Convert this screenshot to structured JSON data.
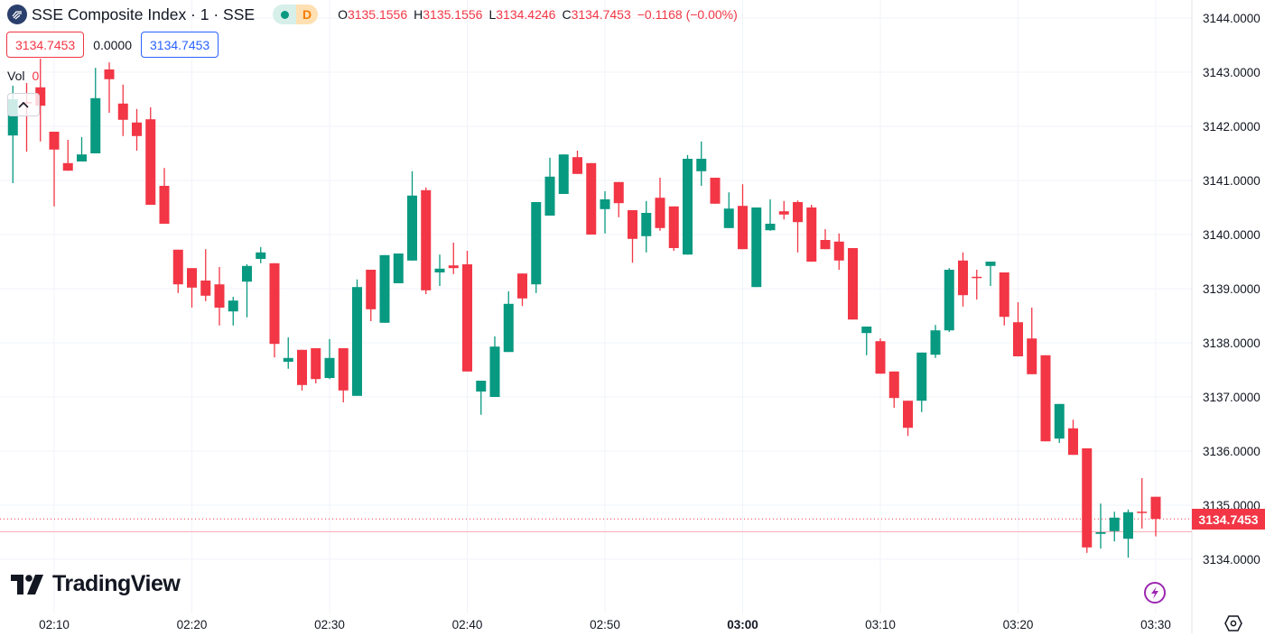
{
  "header": {
    "symbol_title": "SSE Composite Index · 1 · SSE",
    "market_status_letter": "D",
    "ohlc": {
      "o_label": "O",
      "o": "3135.1556",
      "h_label": "H",
      "h": "3135.1556",
      "l_label": "L",
      "l": "3134.4246",
      "c_label": "C",
      "c": "3134.7453",
      "change": "−0.1168 (−0.00%)"
    },
    "bid": "3134.7453",
    "spread": "0.0000",
    "ask": "3134.7453"
  },
  "volume": {
    "label": "Vol",
    "value": "0"
  },
  "logo_text": "TradingView",
  "last_price_tag": "3134.7453",
  "colors": {
    "up": "#089981",
    "down": "#f23645",
    "grid": "#f0f3fa",
    "accent": "#2962ff",
    "bolt": "#9c27b0"
  },
  "chart_data": {
    "type": "candlestick",
    "title": "SSE Composite Index · 1 · SSE",
    "start_time": "02:07",
    "interval_minutes": 1,
    "ylim": [
      3133.5,
      3144.33
    ],
    "y_ticks": [
      "3134.0000",
      "3135.0000",
      "3136.0000",
      "3137.0000",
      "3138.0000",
      "3139.0000",
      "3140.0000",
      "3141.0000",
      "3142.0000",
      "3143.0000",
      "3144.0000"
    ],
    "x_ticks": [
      {
        "t": "02:10",
        "bold": false
      },
      {
        "t": "02:20",
        "bold": false
      },
      {
        "t": "02:30",
        "bold": false
      },
      {
        "t": "02:40",
        "bold": false
      },
      {
        "t": "02:50",
        "bold": false
      },
      {
        "t": "03:00",
        "bold": true
      },
      {
        "t": "03:10",
        "bold": false
      },
      {
        "t": "03:20",
        "bold": false
      },
      {
        "t": "03:30",
        "bold": false
      }
    ],
    "prev_close_line": 3134.51,
    "last_price": 3134.7453,
    "ohlc_columns": [
      "open",
      "high",
      "low",
      "close"
    ],
    "candles": [
      [
        3141.83,
        3142.75,
        3140.95,
        3142.5
      ],
      [
        3142.45,
        3142.8,
        3141.53,
        3142.42
      ],
      [
        3142.72,
        3143.25,
        3141.72,
        3142.38
      ],
      [
        3141.9,
        3141.9,
        3140.52,
        3141.57
      ],
      [
        3141.32,
        3141.75,
        3141.18,
        3141.18
      ],
      [
        3141.35,
        3141.8,
        3141.35,
        3141.48
      ],
      [
        3141.5,
        3143.08,
        3141.5,
        3142.52
      ],
      [
        3143.05,
        3143.18,
        3142.25,
        3142.87
      ],
      [
        3142.42,
        3142.77,
        3141.82,
        3142.12
      ],
      [
        3142.07,
        3142.32,
        3141.55,
        3141.82
      ],
      [
        3142.13,
        3142.35,
        3140.55,
        3140.55
      ],
      [
        3140.9,
        3141.23,
        3140.2,
        3140.2
      ],
      [
        3139.72,
        3139.72,
        3138.92,
        3139.08
      ],
      [
        3139.38,
        3139.38,
        3138.65,
        3139.02
      ],
      [
        3139.15,
        3139.73,
        3138.77,
        3138.87
      ],
      [
        3139.08,
        3139.4,
        3138.32,
        3138.65
      ],
      [
        3138.58,
        3138.85,
        3138.32,
        3138.78
      ],
      [
        3139.13,
        3139.45,
        3138.47,
        3139.42
      ],
      [
        3139.55,
        3139.77,
        3139.47,
        3139.67
      ],
      [
        3139.47,
        3139.47,
        3137.73,
        3137.98
      ],
      [
        3137.65,
        3138.1,
        3137.52,
        3137.72
      ],
      [
        3137.87,
        3137.87,
        3137.12,
        3137.22
      ],
      [
        3137.9,
        3137.9,
        3137.25,
        3137.33
      ],
      [
        3137.35,
        3138.07,
        3137.33,
        3137.72
      ],
      [
        3137.9,
        3137.9,
        3136.9,
        3137.12
      ],
      [
        3137.02,
        3139.17,
        3137.02,
        3139.03
      ],
      [
        3139.35,
        3139.35,
        3138.4,
        3138.62
      ],
      [
        3138.37,
        3139.62,
        3138.37,
        3139.62
      ],
      [
        3139.1,
        3139.65,
        3139.1,
        3139.65
      ],
      [
        3139.52,
        3141.17,
        3139.52,
        3140.72
      ],
      [
        3140.82,
        3140.87,
        3138.9,
        3138.97
      ],
      [
        3139.3,
        3139.63,
        3139.05,
        3139.37
      ],
      [
        3139.43,
        3139.85,
        3139.27,
        3139.38
      ],
      [
        3139.45,
        3139.7,
        3137.47,
        3137.47
      ],
      [
        3137.1,
        3137.3,
        3136.67,
        3137.3
      ],
      [
        3137.0,
        3138.12,
        3137.0,
        3137.93
      ],
      [
        3137.83,
        3138.95,
        3137.83,
        3138.72
      ],
      [
        3139.28,
        3139.28,
        3138.68,
        3138.82
      ],
      [
        3139.08,
        3140.6,
        3138.92,
        3140.6
      ],
      [
        3140.35,
        3141.42,
        3140.35,
        3141.07
      ],
      [
        3140.75,
        3141.48,
        3140.75,
        3141.48
      ],
      [
        3141.43,
        3141.55,
        3141.12,
        3141.12
      ],
      [
        3141.32,
        3141.32,
        3140.0,
        3140.0
      ],
      [
        3140.47,
        3140.8,
        3140.02,
        3140.65
      ],
      [
        3140.97,
        3140.97,
        3140.32,
        3140.58
      ],
      [
        3140.45,
        3140.45,
        3139.48,
        3139.92
      ],
      [
        3139.97,
        3140.62,
        3139.67,
        3140.4
      ],
      [
        3140.68,
        3141.05,
        3140.07,
        3140.12
      ],
      [
        3140.52,
        3140.52,
        3139.7,
        3139.75
      ],
      [
        3139.63,
        3141.47,
        3139.63,
        3141.4
      ],
      [
        3141.17,
        3141.72,
        3140.9,
        3141.4
      ],
      [
        3141.05,
        3141.05,
        3140.57,
        3140.57
      ],
      [
        3140.12,
        3140.78,
        3140.12,
        3140.48
      ],
      [
        3140.53,
        3140.93,
        3139.73,
        3139.73
      ],
      [
        3139.03,
        3140.5,
        3139.03,
        3140.5
      ],
      [
        3140.08,
        3140.65,
        3140.07,
        3140.2
      ],
      [
        3140.43,
        3140.62,
        3140.28,
        3140.37
      ],
      [
        3140.6,
        3140.63,
        3139.67,
        3140.23
      ],
      [
        3140.5,
        3140.55,
        3139.5,
        3139.5
      ],
      [
        3139.9,
        3140.1,
        3139.73,
        3139.73
      ],
      [
        3139.87,
        3140.02,
        3139.35,
        3139.52
      ],
      [
        3139.75,
        3139.75,
        3138.43,
        3138.43
      ],
      [
        3138.18,
        3138.3,
        3137.77,
        3138.3
      ],
      [
        3138.03,
        3138.08,
        3137.43,
        3137.43
      ],
      [
        3137.47,
        3137.47,
        3136.8,
        3136.98
      ],
      [
        3136.93,
        3136.93,
        3136.28,
        3136.43
      ],
      [
        3136.93,
        3137.82,
        3136.72,
        3137.82
      ],
      [
        3137.78,
        3138.33,
        3137.72,
        3138.23
      ],
      [
        3138.23,
        3139.38,
        3138.2,
        3139.35
      ],
      [
        3139.52,
        3139.67,
        3138.67,
        3138.88
      ],
      [
        3139.22,
        3139.35,
        3138.8,
        3139.21
      ],
      [
        3139.42,
        3139.5,
        3139.05,
        3139.5
      ],
      [
        3139.3,
        3139.3,
        3138.32,
        3138.48
      ],
      [
        3138.38,
        3138.75,
        3137.75,
        3137.75
      ],
      [
        3138.08,
        3138.65,
        3137.42,
        3137.42
      ],
      [
        3137.77,
        3137.77,
        3136.18,
        3136.18
      ],
      [
        3136.23,
        3136.87,
        3136.15,
        3136.87
      ],
      [
        3136.42,
        3136.58,
        3135.93,
        3135.93
      ],
      [
        3136.05,
        3136.05,
        3134.12,
        3134.22
      ],
      [
        3134.47,
        3135.03,
        3134.2,
        3134.5
      ],
      [
        3134.52,
        3134.88,
        3134.33,
        3134.77
      ],
      [
        3134.38,
        3134.92,
        3134.03,
        3134.87
      ],
      [
        3134.88,
        3135.5,
        3134.57,
        3134.87
      ],
      [
        3135.1556,
        3135.1556,
        3134.4246,
        3134.7453
      ]
    ]
  }
}
